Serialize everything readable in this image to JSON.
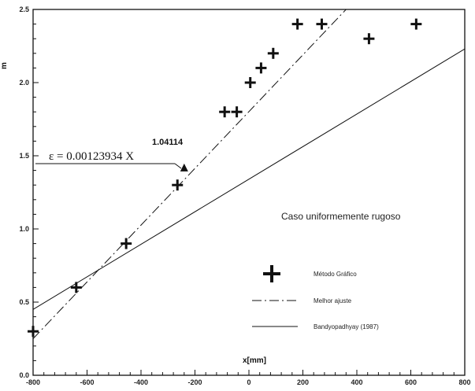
{
  "chart_data": {
    "type": "scatter",
    "title": "",
    "xlabel": "x[mm]",
    "ylabel": "m",
    "xlim": [
      -800,
      800
    ],
    "ylim": [
      0.0,
      2.5
    ],
    "x_ticks": [
      -800,
      -600,
      -400,
      -200,
      0,
      200,
      400,
      600,
      800
    ],
    "x_tick_labels": [
      "-800",
      "-600",
      "-400",
      "-200",
      "0",
      "200",
      "400",
      "600",
      "800"
    ],
    "y_ticks": [
      0.0,
      0.5,
      1.0,
      1.5,
      2.0,
      2.5
    ],
    "y_tick_labels": [
      "0.0",
      "0.5",
      "1.0",
      "1.5",
      "2.0",
      "2.5"
    ],
    "series": [
      {
        "name": "Método Gráfico",
        "marker": "plus",
        "points": [
          {
            "x": -800,
            "y": 0.3
          },
          {
            "x": -640,
            "y": 0.6
          },
          {
            "x": -455,
            "y": 0.9
          },
          {
            "x": -265,
            "y": 1.3
          },
          {
            "x": -90,
            "y": 1.8
          },
          {
            "x": -45,
            "y": 1.8
          },
          {
            "x": 5,
            "y": 2.0
          },
          {
            "x": 45,
            "y": 2.1
          },
          {
            "x": 90,
            "y": 2.2
          },
          {
            "x": 180,
            "y": 2.4
          },
          {
            "x": 270,
            "y": 2.4
          },
          {
            "x": 445,
            "y": 2.3
          },
          {
            "x": 620,
            "y": 2.4
          }
        ]
      },
      {
        "name": "Melhor ajuste",
        "style": "dash-dot",
        "line": [
          {
            "x": -800,
            "y": 0.25
          },
          {
            "x": 360,
            "y": 2.5
          }
        ]
      },
      {
        "name": "Bandyopadhyay (1987)",
        "style": "solid",
        "line": [
          {
            "x": -800,
            "y": 0.45
          },
          {
            "x": 800,
            "y": 2.23
          }
        ]
      }
    ],
    "annotations": {
      "equation_main": "ε = 0.00123934 X",
      "equation_exponent": "1.04114",
      "arrow_target": {
        "x": -240,
        "y": 1.42
      },
      "caption": "Caso uniformemente rugoso"
    },
    "legend": {
      "placement": "bottom-right",
      "entries": [
        "Método Gráfico",
        "Melhor ajuste",
        "Bandyopadhyay (1987)"
      ]
    },
    "grid": false,
    "colors": {
      "ink": "#111111",
      "background": "#ffffff"
    }
  }
}
